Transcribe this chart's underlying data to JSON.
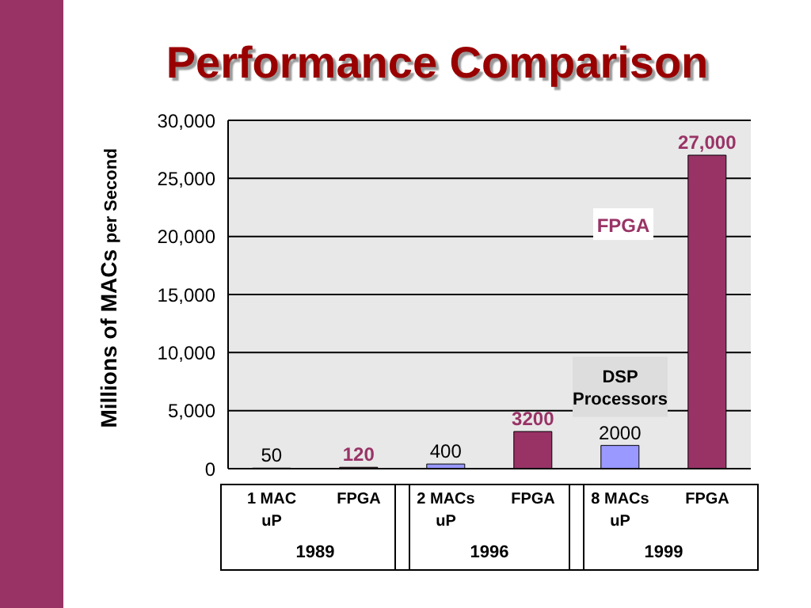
{
  "chart_data": {
    "type": "bar",
    "title": "Performance Comparison",
    "ylabel": "Millions of MACs per Second",
    "categories": [
      "1 MAC uP",
      "FPGA",
      "2 MACs uP",
      "FPGA",
      "8 MACs uP",
      "FPGA"
    ],
    "values": [
      50,
      120,
      400,
      3200,
      2000,
      27000
    ],
    "colors": [
      "#9999ff",
      "#993366",
      "#9999ff",
      "#993366",
      "#9999ff",
      "#993366"
    ],
    "value_labels": [
      "50",
      "120",
      "400",
      "3200",
      "2000",
      "27,000"
    ],
    "ylim": [
      0,
      30000
    ],
    "yticks": [
      0,
      {
        "value": 5000,
        "label": "5,000"
      },
      {
        "value": 10000,
        "label": "10,000"
      },
      {
        "value": 15000,
        "label": "15,000"
      },
      {
        "value": 20000,
        "label": "20,000"
      },
      {
        "value": 25000,
        "label": "25,000"
      },
      {
        "value": 30000,
        "label": "30,000"
      }
    ],
    "grid": "y",
    "annotations": [
      "1989",
      "1996",
      "1999",
      "FPGA",
      "DSP Processors"
    ]
  }
}
